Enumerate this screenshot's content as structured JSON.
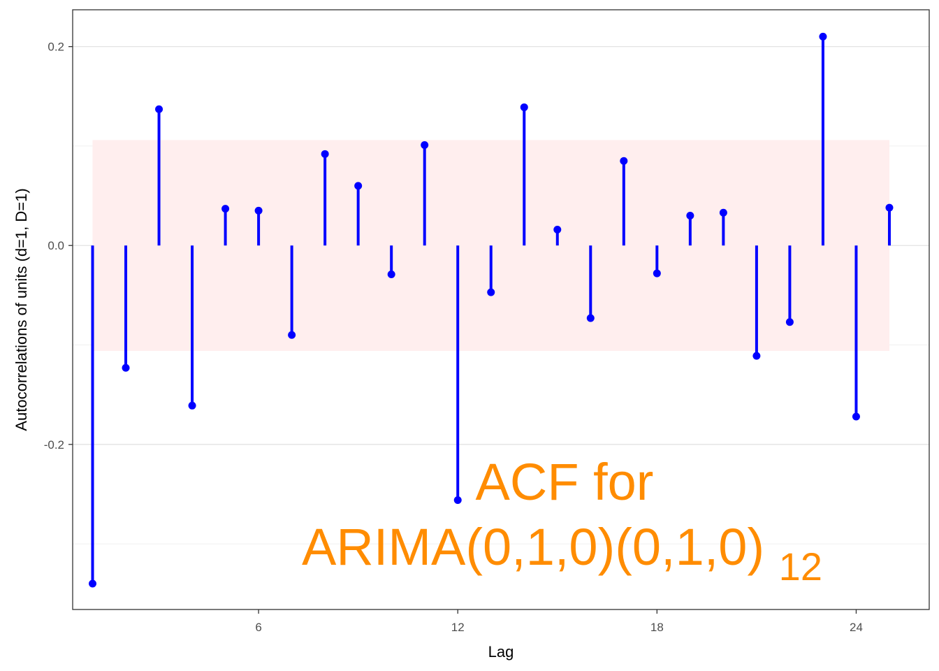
{
  "chart_data": {
    "type": "acf",
    "xlabel": "Lag",
    "ylabel": "Autocorrelations of units (d=1, D=1)",
    "x_ticks": [
      6,
      12,
      18,
      24
    ],
    "y_ticks": [
      "-0.2",
      "0.0",
      "0.2"
    ],
    "xlim": [
      0.4,
      26.2
    ],
    "ylim": [
      -0.366,
      0.237
    ],
    "grid": true,
    "confidence_band": 0.106,
    "colors": {
      "stems": "#0000ff",
      "band": "#ffeeee",
      "annotation": "#ff8c00"
    },
    "lags": [
      1,
      2,
      3,
      4,
      5,
      6,
      7,
      8,
      9,
      10,
      11,
      12,
      13,
      14,
      15,
      16,
      17,
      18,
      19,
      20,
      21,
      22,
      23,
      24,
      25
    ],
    "values": [
      -0.34,
      -0.123,
      0.137,
      -0.161,
      0.037,
      0.035,
      -0.09,
      0.092,
      0.06,
      -0.029,
      0.101,
      -0.256,
      -0.047,
      0.139,
      0.016,
      -0.073,
      0.085,
      -0.028,
      0.03,
      0.033,
      -0.111,
      -0.077,
      0.21,
      -0.172,
      0.038
    ],
    "annotation": {
      "line1": "ACF for",
      "line2": "ARIMA(0,1,0)(0,1,0)",
      "subscript": "12"
    }
  }
}
